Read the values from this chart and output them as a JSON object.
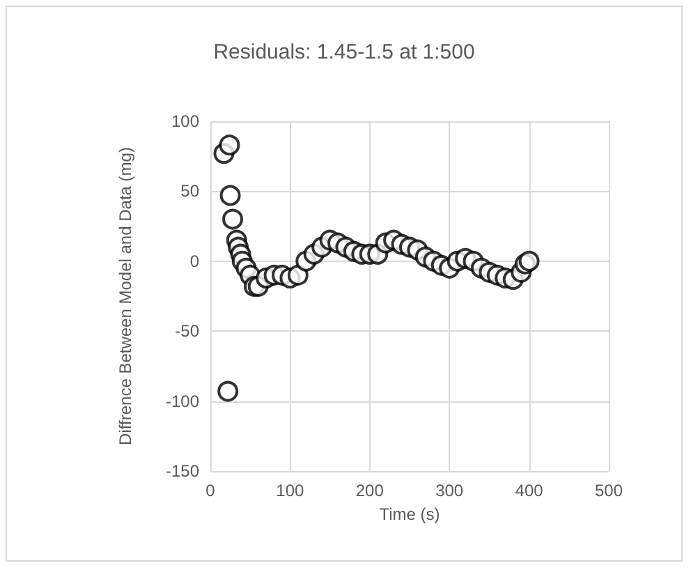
{
  "chart_data": {
    "type": "scatter",
    "title": "Residuals: 1.45-1.5 at 1:500",
    "xlabel": "Time (s)",
    "ylabel": "Diffrence Between Model and Data (mg)",
    "x": [
      17,
      24,
      25,
      28,
      30,
      33,
      35,
      38,
      40,
      45,
      50,
      55,
      60,
      22,
      70,
      80,
      90,
      100,
      110,
      120,
      130,
      140,
      150,
      160,
      170,
      180,
      190,
      200,
      210,
      220,
      230,
      240,
      250,
      260,
      270,
      280,
      290,
      300,
      310,
      320,
      330,
      340,
      350,
      360,
      370,
      380,
      390,
      395,
      400
    ],
    "series": [
      {
        "color": "#000000",
        "values": [
          77,
          83,
          47,
          30,
          null,
          15,
          10,
          5,
          0,
          -5,
          -10,
          -18,
          -18,
          -93,
          -12,
          -10,
          -10,
          -12,
          -10,
          0,
          5,
          10,
          15,
          13,
          10,
          7,
          5,
          5,
          5,
          13,
          15,
          12,
          10,
          8,
          3,
          0,
          -3,
          -5,
          0,
          2,
          0,
          -5,
          -8,
          -10,
          -12,
          -13,
          -8,
          -2,
          0
        ]
      }
    ],
    "xlim": [
      0,
      500
    ],
    "xticks": [
      0,
      100,
      200,
      300,
      400,
      500
    ],
    "ylim": [
      -150,
      100
    ],
    "yticks": [
      -150,
      -100,
      -50,
      0,
      50,
      100
    ],
    "grid": true,
    "marker": "circle"
  }
}
